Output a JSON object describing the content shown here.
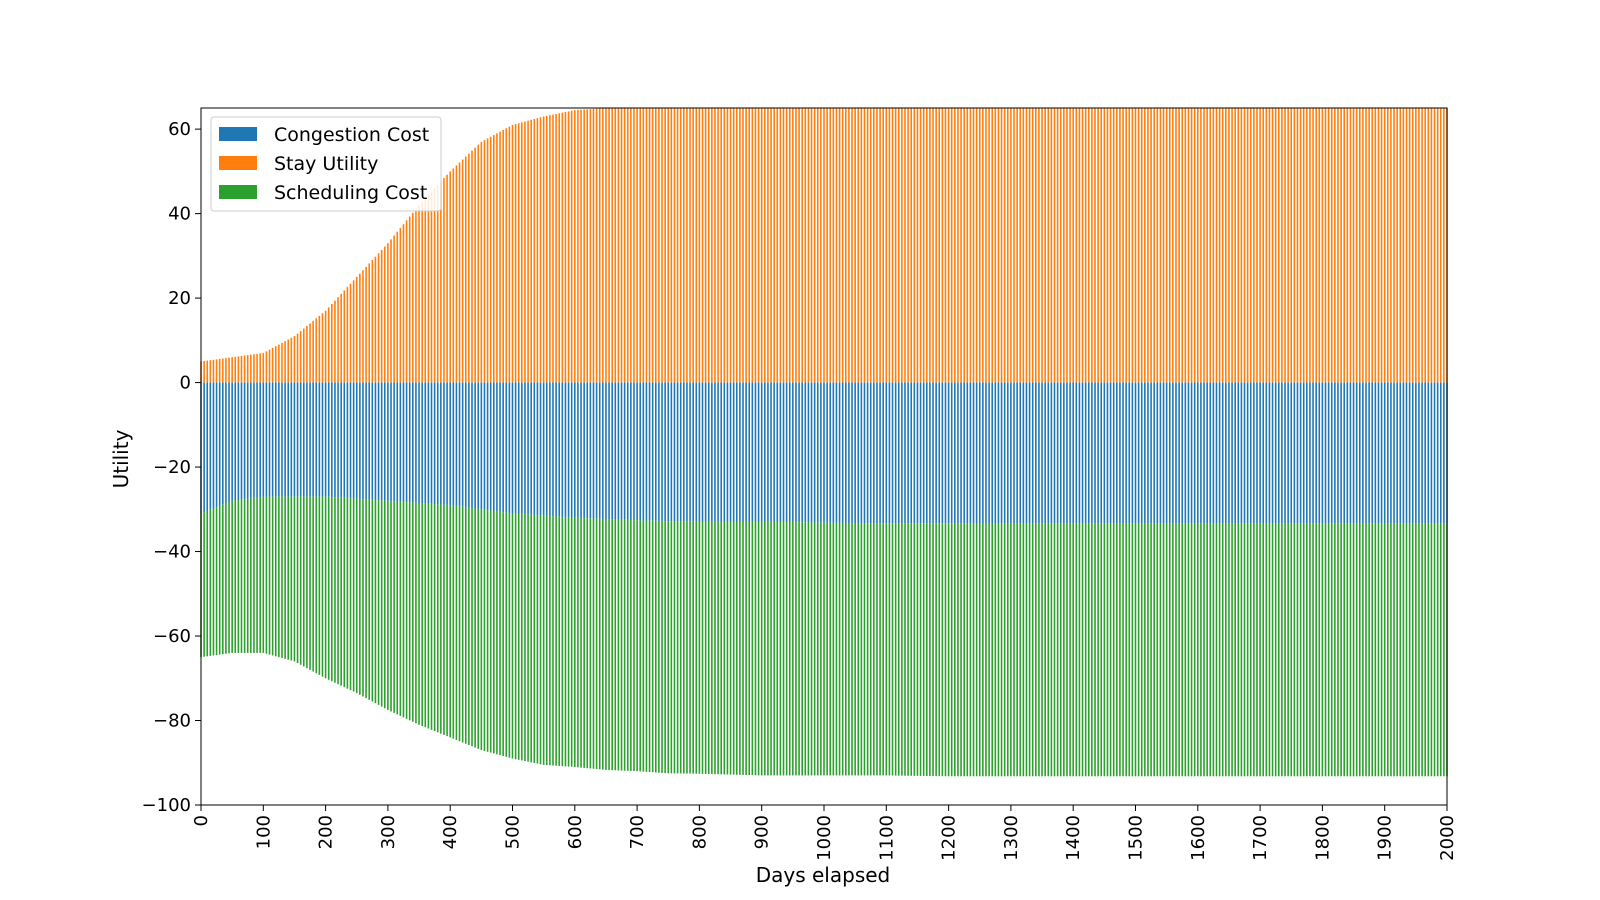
{
  "chart_data": {
    "type": "bar",
    "stacking": "positive values stacked upward from 0, negative values stacked downward from 0",
    "xlabel": "Days elapsed",
    "ylabel": "Utility",
    "xlim": [
      0,
      2000
    ],
    "ylim": [
      -100,
      65
    ],
    "x_ticks": [
      0,
      100,
      200,
      300,
      400,
      500,
      600,
      700,
      800,
      900,
      1000,
      1100,
      1200,
      1300,
      1400,
      1500,
      1600,
      1700,
      1800,
      1900,
      2000
    ],
    "y_ticks": [
      -100,
      -80,
      -60,
      -40,
      -20,
      0,
      20,
      40,
      60
    ],
    "grid": false,
    "legend": {
      "placement": "upper-left",
      "entries": [
        "Congestion Cost",
        "Stay Utility",
        "Scheduling Cost"
      ]
    },
    "colors": {
      "Congestion Cost": "#1f77b4",
      "Stay Utility": "#ff7f0e",
      "Scheduling Cost": "#2ca02c"
    },
    "x": [
      0,
      50,
      100,
      150,
      200,
      250,
      300,
      350,
      400,
      450,
      500,
      550,
      600,
      650,
      700,
      750,
      800,
      850,
      900,
      950,
      1000,
      1100,
      1200,
      1300,
      1400,
      1500,
      1600,
      1700,
      1800,
      1900,
      2000
    ],
    "series": [
      {
        "name": "Congestion Cost",
        "values": [
          -31,
          -28,
          -27,
          -27,
          -27,
          -27.5,
          -28,
          -28.5,
          -29,
          -30,
          -31,
          -31.5,
          -32,
          -32.3,
          -32.6,
          -32.8,
          -33,
          -33,
          -33,
          -33,
          -33.2,
          -33.3,
          -33.3,
          -33.4,
          -33.4,
          -33.4,
          -33.4,
          -33.4,
          -33.4,
          -33.4,
          -33.4
        ]
      },
      {
        "name": "Stay Utility",
        "values": [
          5,
          6,
          7,
          11,
          17,
          25,
          33,
          42,
          50,
          57,
          61,
          63,
          64.5,
          65,
          65,
          65,
          65,
          65,
          65,
          65,
          65,
          65,
          65,
          65,
          65,
          65,
          65,
          65,
          65,
          65,
          65
        ]
      },
      {
        "name": "Scheduling Cost",
        "values": [
          -34,
          -36,
          -37,
          -39,
          -43,
          -46,
          -49.5,
          -52.5,
          -55,
          -57,
          -58,
          -59,
          -59,
          -59.4,
          -59.4,
          -59.7,
          -59.6,
          -59.8,
          -60,
          -60,
          -59.8,
          -59.7,
          -59.9,
          -59.8,
          -59.8,
          -59.8,
          -59.8,
          -59.8,
          -59.8,
          -59.8,
          -59.8
        ]
      }
    ]
  }
}
